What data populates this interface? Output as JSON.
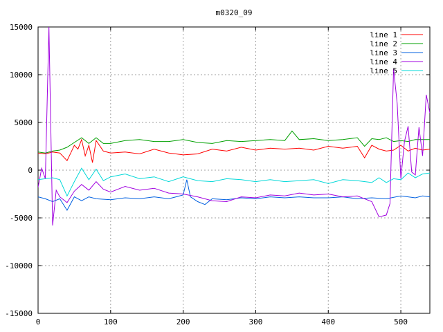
{
  "chart_data": {
    "type": "line",
    "title": "m0320_09",
    "xlabel": "",
    "ylabel": "",
    "xlim": [
      0,
      540
    ],
    "ylim": [
      -15000,
      15000
    ],
    "grid": true,
    "legend_position": "top-right",
    "x_ticks": [
      "0",
      "100",
      "200",
      "300",
      "400",
      "500"
    ],
    "x_tick_values": [
      0,
      100,
      200,
      300,
      400,
      500
    ],
    "y_ticks": [
      "15000",
      "10000",
      "5000",
      "0",
      "-5000",
      "-10000",
      "-15000"
    ],
    "y_tick_values": [
      15000,
      10000,
      5000,
      0,
      -5000,
      -10000,
      -15000
    ],
    "series": [
      {
        "name": "line 1",
        "color": "#ff0000",
        "points": [
          [
            0,
            1800
          ],
          [
            10,
            1700
          ],
          [
            20,
            1900
          ],
          [
            30,
            1800
          ],
          [
            40,
            1000
          ],
          [
            45,
            1800
          ],
          [
            50,
            2600
          ],
          [
            55,
            2200
          ],
          [
            60,
            3200
          ],
          [
            65,
            1500
          ],
          [
            70,
            2600
          ],
          [
            75,
            800
          ],
          [
            80,
            3100
          ],
          [
            90,
            2000
          ],
          [
            100,
            1800
          ],
          [
            120,
            1900
          ],
          [
            140,
            1700
          ],
          [
            160,
            2200
          ],
          [
            180,
            1800
          ],
          [
            200,
            1600
          ],
          [
            220,
            1700
          ],
          [
            240,
            2200
          ],
          [
            260,
            2000
          ],
          [
            280,
            2400
          ],
          [
            300,
            2100
          ],
          [
            320,
            2300
          ],
          [
            340,
            2200
          ],
          [
            360,
            2300
          ],
          [
            380,
            2100
          ],
          [
            400,
            2500
          ],
          [
            420,
            2300
          ],
          [
            440,
            2500
          ],
          [
            450,
            1300
          ],
          [
            460,
            2600
          ],
          [
            470,
            2200
          ],
          [
            480,
            2000
          ],
          [
            490,
            2100
          ],
          [
            500,
            2600
          ],
          [
            510,
            2000
          ],
          [
            520,
            2300
          ],
          [
            530,
            2100
          ],
          [
            540,
            2200
          ]
        ]
      },
      {
        "name": "line 2",
        "color": "#00a000",
        "points": [
          [
            0,
            1900
          ],
          [
            10,
            1800
          ],
          [
            20,
            2000
          ],
          [
            30,
            2100
          ],
          [
            40,
            2400
          ],
          [
            50,
            2900
          ],
          [
            60,
            3400
          ],
          [
            70,
            2800
          ],
          [
            80,
            3400
          ],
          [
            90,
            2800
          ],
          [
            100,
            2800
          ],
          [
            120,
            3100
          ],
          [
            140,
            3200
          ],
          [
            160,
            3000
          ],
          [
            180,
            3000
          ],
          [
            200,
            3200
          ],
          [
            220,
            2900
          ],
          [
            240,
            2800
          ],
          [
            260,
            3100
          ],
          [
            280,
            3000
          ],
          [
            300,
            3100
          ],
          [
            320,
            3200
          ],
          [
            340,
            3100
          ],
          [
            350,
            4100
          ],
          [
            360,
            3200
          ],
          [
            380,
            3300
          ],
          [
            400,
            3100
          ],
          [
            420,
            3200
          ],
          [
            440,
            3400
          ],
          [
            450,
            2500
          ],
          [
            460,
            3300
          ],
          [
            470,
            3200
          ],
          [
            480,
            3400
          ],
          [
            490,
            3000
          ],
          [
            500,
            3100
          ],
          [
            510,
            3000
          ],
          [
            520,
            3200
          ],
          [
            530,
            3200
          ],
          [
            540,
            3200
          ]
        ]
      },
      {
        "name": "line 3",
        "color": "#0060e0",
        "points": [
          [
            0,
            -2800
          ],
          [
            10,
            -3000
          ],
          [
            20,
            -3300
          ],
          [
            30,
            -3000
          ],
          [
            40,
            -4200
          ],
          [
            50,
            -2800
          ],
          [
            60,
            -3200
          ],
          [
            70,
            -2800
          ],
          [
            80,
            -3000
          ],
          [
            100,
            -3100
          ],
          [
            120,
            -2900
          ],
          [
            140,
            -3000
          ],
          [
            160,
            -2800
          ],
          [
            180,
            -3000
          ],
          [
            200,
            -2600
          ],
          [
            205,
            -1000
          ],
          [
            210,
            -2800
          ],
          [
            220,
            -3300
          ],
          [
            230,
            -3600
          ],
          [
            240,
            -3000
          ],
          [
            260,
            -3100
          ],
          [
            280,
            -2900
          ],
          [
            300,
            -3000
          ],
          [
            320,
            -2800
          ],
          [
            340,
            -2900
          ],
          [
            360,
            -2800
          ],
          [
            380,
            -2900
          ],
          [
            400,
            -2900
          ],
          [
            420,
            -2800
          ],
          [
            440,
            -3000
          ],
          [
            460,
            -2900
          ],
          [
            480,
            -3000
          ],
          [
            500,
            -2700
          ],
          [
            510,
            -2800
          ],
          [
            520,
            -2900
          ],
          [
            530,
            -2700
          ],
          [
            540,
            -2800
          ]
        ]
      },
      {
        "name": "line 4",
        "color": "#a000e0",
        "points": [
          [
            0,
            -1800
          ],
          [
            5,
            200
          ],
          [
            10,
            -900
          ],
          [
            15,
            15000
          ],
          [
            20,
            -5800
          ],
          [
            25,
            -2100
          ],
          [
            30,
            -2800
          ],
          [
            40,
            -3400
          ],
          [
            50,
            -2200
          ],
          [
            60,
            -1500
          ],
          [
            70,
            -2100
          ],
          [
            80,
            -1200
          ],
          [
            90,
            -2000
          ],
          [
            100,
            -2300
          ],
          [
            120,
            -1700
          ],
          [
            140,
            -2100
          ],
          [
            160,
            -1900
          ],
          [
            180,
            -2400
          ],
          [
            200,
            -2500
          ],
          [
            220,
            -2800
          ],
          [
            240,
            -3200
          ],
          [
            260,
            -3300
          ],
          [
            280,
            -2800
          ],
          [
            300,
            -2900
          ],
          [
            320,
            -2600
          ],
          [
            340,
            -2700
          ],
          [
            360,
            -2400
          ],
          [
            380,
            -2600
          ],
          [
            400,
            -2500
          ],
          [
            420,
            -2800
          ],
          [
            440,
            -2700
          ],
          [
            460,
            -3300
          ],
          [
            470,
            -4900
          ],
          [
            480,
            -4700
          ],
          [
            485,
            -3500
          ],
          [
            490,
            10600
          ],
          [
            495,
            7000
          ],
          [
            500,
            -900
          ],
          [
            505,
            3000
          ],
          [
            510,
            4600
          ],
          [
            515,
            -200
          ],
          [
            520,
            -500
          ],
          [
            525,
            4500
          ],
          [
            530,
            1500
          ],
          [
            535,
            7900
          ],
          [
            540,
            6000
          ]
        ]
      },
      {
        "name": "line 5",
        "color": "#00d8d8",
        "points": [
          [
            0,
            -1000
          ],
          [
            10,
            -900
          ],
          [
            20,
            -800
          ],
          [
            30,
            -1000
          ],
          [
            40,
            -2700
          ],
          [
            50,
            -1200
          ],
          [
            60,
            200
          ],
          [
            70,
            -1000
          ],
          [
            80,
            100
          ],
          [
            90,
            -1100
          ],
          [
            100,
            -700
          ],
          [
            120,
            -400
          ],
          [
            140,
            -900
          ],
          [
            160,
            -700
          ],
          [
            180,
            -1200
          ],
          [
            200,
            -700
          ],
          [
            220,
            -1100
          ],
          [
            240,
            -1200
          ],
          [
            260,
            -900
          ],
          [
            280,
            -1000
          ],
          [
            300,
            -1200
          ],
          [
            320,
            -1000
          ],
          [
            340,
            -1200
          ],
          [
            360,
            -1100
          ],
          [
            380,
            -1000
          ],
          [
            400,
            -1400
          ],
          [
            420,
            -1000
          ],
          [
            440,
            -1100
          ],
          [
            460,
            -1300
          ],
          [
            470,
            -800
          ],
          [
            480,
            -1300
          ],
          [
            490,
            -900
          ],
          [
            500,
            -1000
          ],
          [
            510,
            -300
          ],
          [
            520,
            -800
          ],
          [
            530,
            -400
          ],
          [
            540,
            -300
          ]
        ]
      }
    ]
  }
}
